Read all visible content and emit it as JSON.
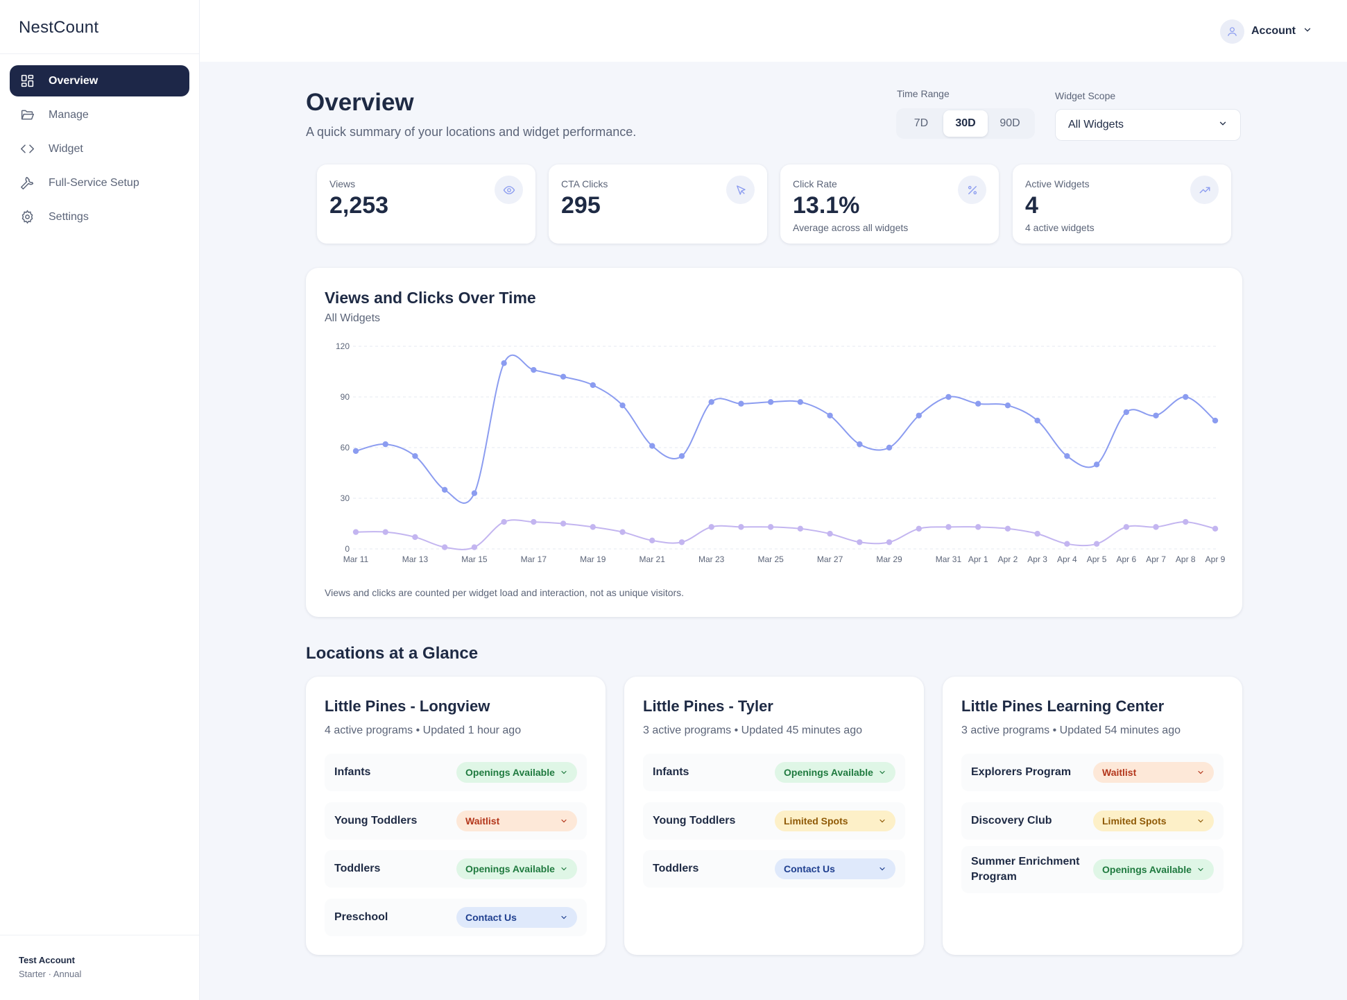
{
  "brand": "NestCount",
  "nav": [
    {
      "label": "Overview",
      "icon": "dashboard-icon",
      "active": true
    },
    {
      "label": "Manage",
      "icon": "folder-icon",
      "active": false
    },
    {
      "label": "Widget",
      "icon": "code-icon",
      "active": false
    },
    {
      "label": "Full-Service Setup",
      "icon": "wrench-icon",
      "active": false
    },
    {
      "label": "Settings",
      "icon": "gear-icon",
      "active": false
    }
  ],
  "account_footer": {
    "name": "Test Account",
    "plan": "Starter · Annual"
  },
  "topbar": {
    "account_label": "Account"
  },
  "header": {
    "title": "Overview",
    "subtitle": "A quick summary of your locations and widget performance.",
    "time_range_label": "Time Range",
    "time_ranges": [
      "7D",
      "30D",
      "90D"
    ],
    "time_range_selected": "30D",
    "widget_scope_label": "Widget Scope",
    "widget_scope_value": "All Widgets"
  },
  "kpis": [
    {
      "label": "Views",
      "value": "2,253",
      "note": "",
      "icon": "eye-icon"
    },
    {
      "label": "CTA Clicks",
      "value": "295",
      "note": "",
      "icon": "cursor-icon"
    },
    {
      "label": "Click Rate",
      "value": "13.1%",
      "note": "Average across all widgets",
      "icon": "percent-icon"
    },
    {
      "label": "Active Widgets",
      "value": "4",
      "note": "4 active widgets",
      "icon": "trend-up-icon"
    }
  ],
  "chart": {
    "title": "Views and Clicks Over Time",
    "subtitle": "All Widgets",
    "note": "Views and clicks are counted per widget load and interaction, not as unique visitors.",
    "colors": {
      "views": "#8b9cf0",
      "clicks": "#c3b5f0"
    }
  },
  "chart_data": {
    "type": "line",
    "x": [
      "Mar 11",
      "Mar 12",
      "Mar 13",
      "Mar 14",
      "Mar 15",
      "Mar 16",
      "Mar 17",
      "Mar 18",
      "Mar 19",
      "Mar 20",
      "Mar 21",
      "Mar 22",
      "Mar 23",
      "Mar 24",
      "Mar 25",
      "Mar 26",
      "Mar 27",
      "Mar 28",
      "Mar 29",
      "Mar 30",
      "Mar 31",
      "Apr 1",
      "Apr 2",
      "Apr 3",
      "Apr 4",
      "Apr 5",
      "Apr 6",
      "Apr 7",
      "Apr 8",
      "Apr 9"
    ],
    "tick_labels": [
      "Mar 11",
      "Mar 13",
      "Mar 15",
      "Mar 17",
      "Mar 19",
      "Mar 21",
      "Mar 23",
      "Mar 25",
      "Mar 27",
      "Mar 29",
      "Mar 31",
      "Apr 1",
      "Apr 2",
      "Apr 3",
      "Apr 4",
      "Apr 5",
      "Apr 6",
      "Apr 7",
      "Apr 8",
      "Apr 9"
    ],
    "series": [
      {
        "key": "views",
        "values": [
          58,
          62,
          55,
          35,
          33,
          110,
          106,
          102,
          97,
          85,
          61,
          55,
          87,
          86,
          87,
          87,
          79,
          62,
          60,
          79,
          90,
          86,
          85,
          76,
          55,
          50,
          81,
          79,
          90,
          76
        ]
      },
      {
        "key": "clicks",
        "values": [
          10,
          10,
          7,
          1,
          1,
          16,
          16,
          15,
          13,
          10,
          5,
          4,
          13,
          13,
          13,
          12,
          9,
          4,
          4,
          12,
          13,
          13,
          12,
          9,
          3,
          3,
          13,
          13,
          16,
          12
        ]
      }
    ],
    "yticks": [
      0,
      30,
      60,
      90,
      120
    ],
    "ylim": [
      0,
      120
    ],
    "grid": true
  },
  "locations_heading": "Locations at a Glance",
  "locations": [
    {
      "name": "Little Pines - Longview",
      "meta": "4 active programs • Updated 1 hour ago",
      "programs": [
        {
          "name": "Infants",
          "status": "Openings Available",
          "kind": "open"
        },
        {
          "name": "Young Toddlers",
          "status": "Waitlist",
          "kind": "wait"
        },
        {
          "name": "Toddlers",
          "status": "Openings Available",
          "kind": "open"
        },
        {
          "name": "Preschool",
          "status": "Contact Us",
          "kind": "contact"
        }
      ]
    },
    {
      "name": "Little Pines - Tyler",
      "meta": "3 active programs • Updated 45 minutes ago",
      "programs": [
        {
          "name": "Infants",
          "status": "Openings Available",
          "kind": "open"
        },
        {
          "name": "Young Toddlers",
          "status": "Limited Spots",
          "kind": "limited"
        },
        {
          "name": "Toddlers",
          "status": "Contact Us",
          "kind": "contact"
        }
      ]
    },
    {
      "name": "Little Pines Learning Center",
      "meta": "3 active programs • Updated 54 minutes ago",
      "programs": [
        {
          "name": "Explorers Program",
          "status": "Waitlist",
          "kind": "wait"
        },
        {
          "name": "Discovery Club",
          "status": "Limited Spots",
          "kind": "limited"
        },
        {
          "name": "Summer Enrichment Program",
          "status": "Openings Available",
          "kind": "open"
        }
      ]
    }
  ]
}
